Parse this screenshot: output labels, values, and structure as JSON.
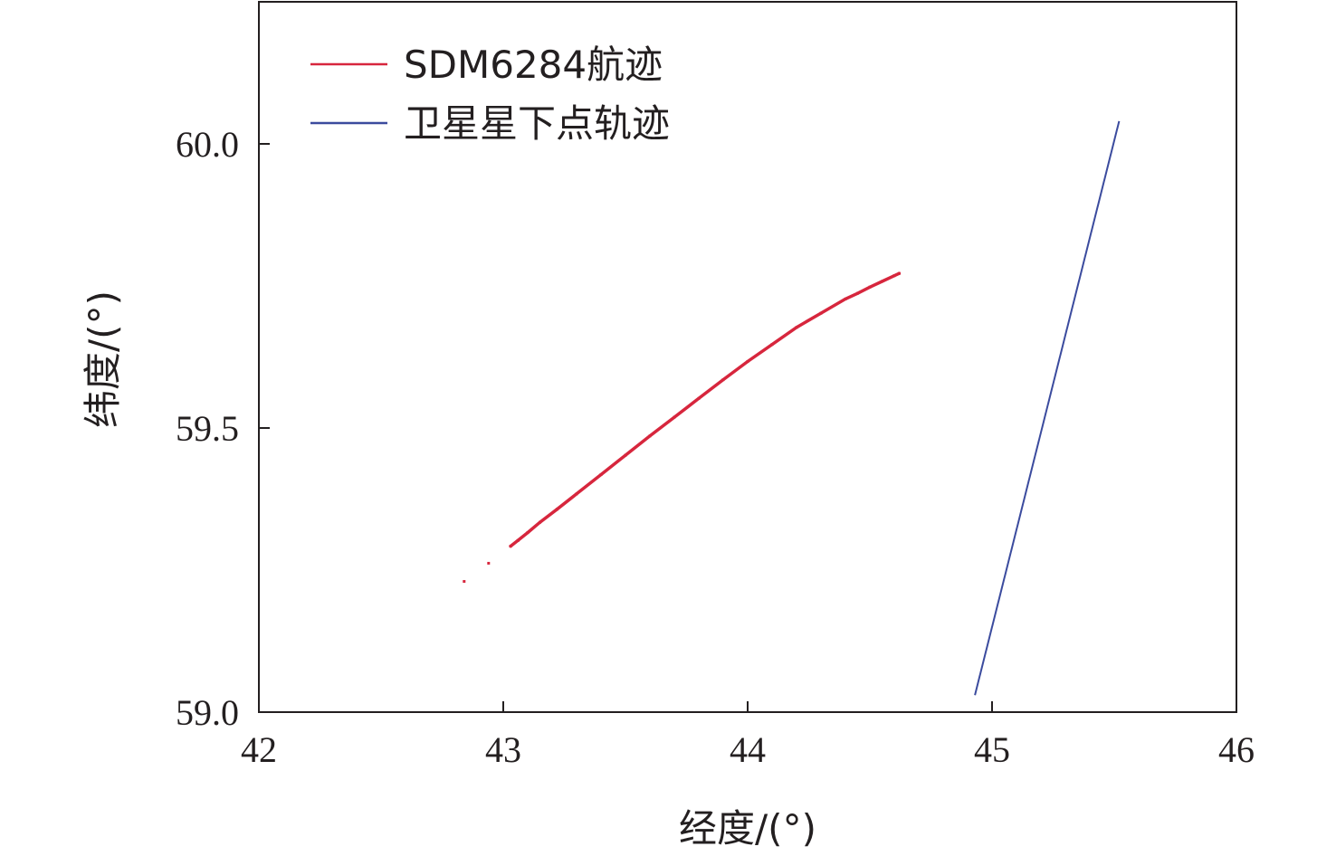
{
  "chart_data": {
    "type": "scatter",
    "title": "",
    "xlabel": "经度/(°)",
    "ylabel": "纬度/(°)",
    "xlim": [
      42,
      46
    ],
    "ylim": [
      59.0,
      60.25
    ],
    "x_ticks": [
      "42",
      "43",
      "44",
      "45",
      "46"
    ],
    "y_ticks": [
      "59.0",
      "59.5",
      "60.0"
    ],
    "grid": false,
    "legend_position": "top-left",
    "series": [
      {
        "name": "SDM6284航迹",
        "color": "#d7263d",
        "marker": "points",
        "points": [
          [
            42.84,
            59.23
          ],
          [
            42.94,
            59.262
          ],
          [
            43.03,
            59.292
          ],
          [
            43.06,
            59.302
          ],
          [
            43.1,
            59.316
          ],
          [
            43.15,
            59.334
          ],
          [
            43.22,
            59.357
          ],
          [
            43.3,
            59.384
          ],
          [
            43.4,
            59.418
          ],
          [
            43.5,
            59.452
          ],
          [
            43.6,
            59.486
          ],
          [
            43.7,
            59.519
          ],
          [
            43.8,
            59.552
          ],
          [
            43.9,
            59.585
          ],
          [
            44.0,
            59.617
          ],
          [
            44.1,
            59.647
          ],
          [
            44.2,
            59.677
          ],
          [
            44.3,
            59.702
          ],
          [
            44.4,
            59.727
          ],
          [
            44.45,
            59.737
          ],
          [
            44.5,
            59.748
          ],
          [
            44.55,
            59.758
          ],
          [
            44.6,
            59.768
          ],
          [
            44.62,
            59.772
          ]
        ]
      },
      {
        "name": "卫星星下点轨迹",
        "color": "#3b4b9e",
        "marker": "line",
        "points": [
          [
            44.93,
            59.03
          ],
          [
            45.52,
            60.04
          ]
        ]
      }
    ]
  }
}
